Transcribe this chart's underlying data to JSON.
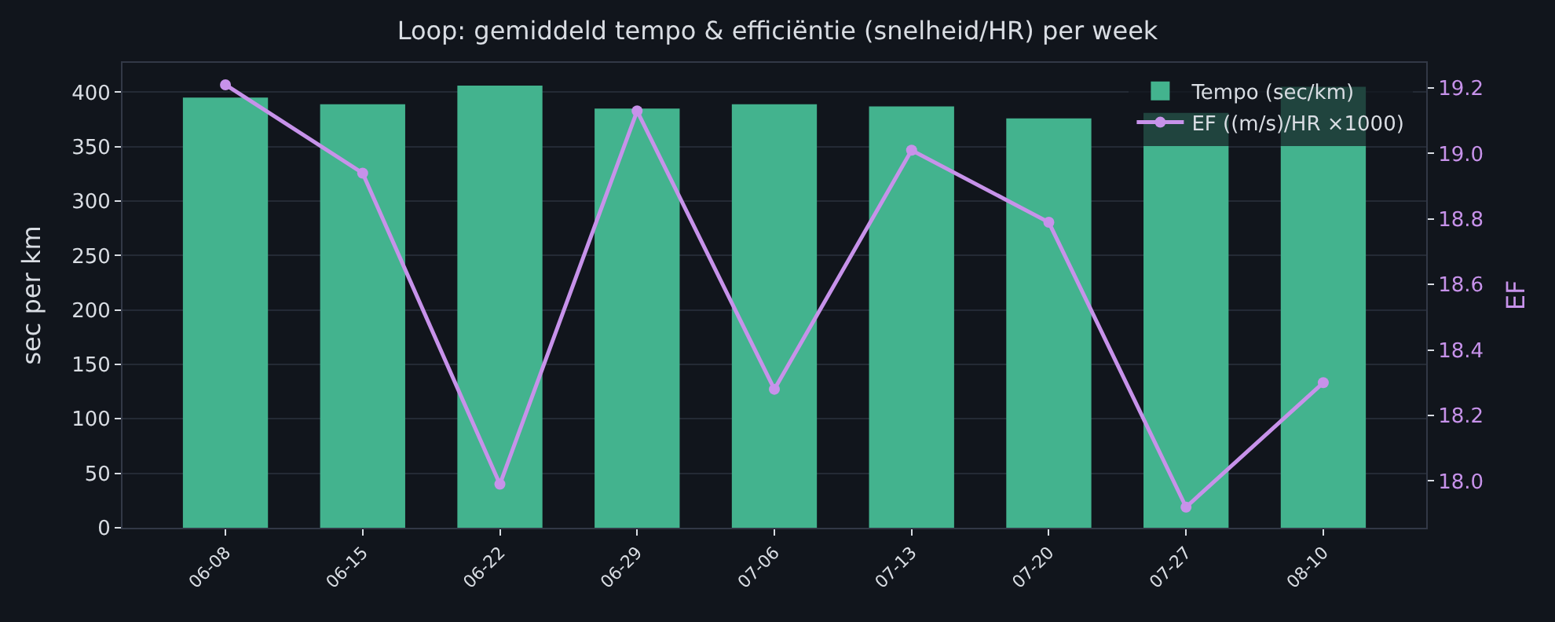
{
  "chart_data": {
    "type": "bar",
    "title": "Loop: gemiddeld tempo & efficiëntie (snelheid/HR) per week",
    "ylabel": "sec per km",
    "y2label": "EF",
    "categories": [
      "06-08",
      "06-15",
      "06-22",
      "06-29",
      "07-06",
      "07-13",
      "07-20",
      "07-27",
      "08-10"
    ],
    "series": [
      {
        "name": "Tempo (sec/km)",
        "color": "#43b38e",
        "values": [
          395,
          389,
          406,
          385,
          389,
          387,
          376,
          381,
          405
        ]
      },
      {
        "name": "EF ((m/s)/HR ×1000)",
        "type": "line",
        "axis": "y2",
        "color": "#c792ea",
        "values": [
          19.21,
          18.94,
          17.99,
          19.13,
          18.28,
          19.01,
          18.79,
          17.92,
          18.3
        ]
      }
    ],
    "ylim": [
      0,
      427
    ],
    "yticks": [
      0,
      50,
      100,
      150,
      200,
      250,
      300,
      350,
      400
    ],
    "y2lim": [
      17.857,
      19.277
    ],
    "y2ticks": [
      {
        "value": 18.0,
        "label": "18.0"
      },
      {
        "value": 18.2,
        "label": "18.2"
      },
      {
        "value": 18.4,
        "label": "18.4"
      },
      {
        "value": 18.6,
        "label": "18.6"
      },
      {
        "value": 18.8,
        "label": "18.8"
      },
      {
        "value": 19.0,
        "label": "19.0"
      },
      {
        "value": 19.2,
        "label": "19.2"
      }
    ],
    "grid": "y",
    "legend": "top right",
    "marker": "circle",
    "line_style": "solid"
  }
}
